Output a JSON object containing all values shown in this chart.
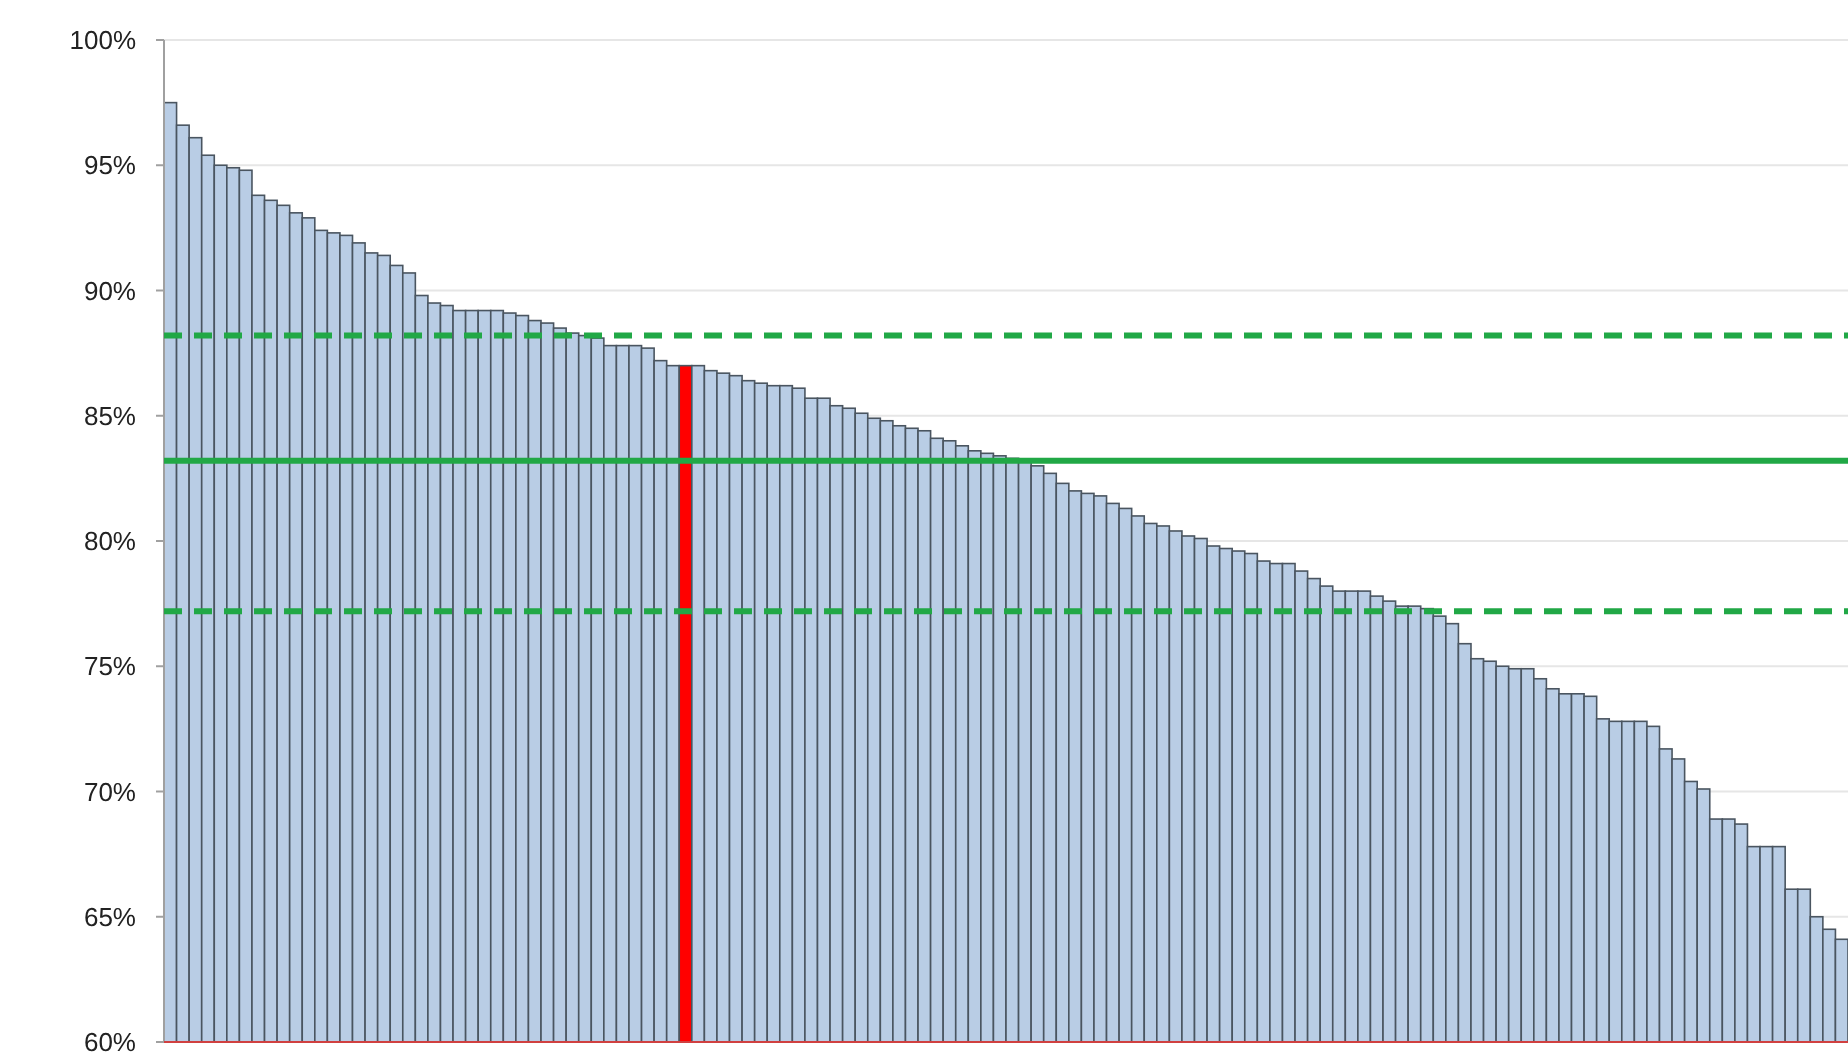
{
  "chart_data": {
    "type": "bar",
    "categories": [
      null,
      null,
      null,
      null,
      null,
      null,
      null,
      null,
      null,
      null,
      null,
      null,
      null,
      null,
      null,
      null,
      null,
      null,
      null,
      null,
      null,
      null,
      null,
      null,
      null,
      null,
      null,
      null,
      null,
      null,
      null,
      null,
      null,
      null,
      null,
      null,
      null,
      null,
      null,
      null,
      null,
      null,
      null,
      null,
      null,
      null,
      null,
      null,
      null,
      null,
      null,
      null,
      null,
      null,
      null,
      null,
      null,
      null,
      null,
      null,
      null,
      null,
      null,
      null,
      null,
      null,
      null,
      null,
      null,
      null,
      null,
      null,
      null,
      null,
      null,
      null,
      null,
      null,
      null,
      null,
      null,
      null,
      null,
      null,
      null,
      null,
      null,
      null,
      null,
      null,
      null,
      null,
      null,
      null,
      null,
      null,
      null,
      null,
      null,
      null,
      null,
      null,
      null,
      null,
      null,
      null,
      null,
      null,
      null,
      null,
      null,
      null,
      null,
      null,
      null,
      null,
      null,
      null,
      null,
      null,
      null,
      null,
      null,
      null,
      null,
      null,
      null,
      null,
      null,
      null,
      null,
      null,
      null,
      null
    ],
    "values": [
      97.5,
      96.6,
      96.1,
      95.4,
      95.0,
      94.9,
      94.8,
      93.8,
      93.6,
      93.4,
      93.1,
      92.9,
      92.4,
      92.3,
      92.2,
      91.9,
      91.5,
      91.4,
      91.0,
      90.7,
      89.8,
      89.5,
      89.4,
      89.2,
      89.2,
      89.2,
      89.2,
      89.1,
      89.0,
      88.8,
      88.7,
      88.5,
      88.3,
      88.2,
      88.1,
      87.8,
      87.8,
      87.8,
      87.7,
      87.2,
      87.0,
      87.0,
      87.0,
      86.8,
      86.7,
      86.6,
      86.4,
      86.3,
      86.2,
      86.2,
      86.1,
      85.7,
      85.7,
      85.4,
      85.3,
      85.1,
      84.9,
      84.8,
      84.6,
      84.5,
      84.4,
      84.1,
      84.0,
      83.8,
      83.6,
      83.5,
      83.4,
      83.3,
      83.2,
      83.0,
      82.7,
      82.3,
      82.0,
      81.9,
      81.8,
      81.5,
      81.3,
      81.0,
      80.7,
      80.6,
      80.4,
      80.2,
      80.1,
      79.8,
      79.7,
      79.6,
      79.5,
      79.2,
      79.1,
      79.1,
      78.8,
      78.5,
      78.2,
      78.0,
      78.0,
      78.0,
      77.8,
      77.6,
      77.4,
      77.4,
      77.3,
      77.0,
      76.7,
      75.9,
      75.3,
      75.2,
      75.0,
      74.9,
      74.9,
      74.5,
      74.1,
      73.9,
      73.9,
      73.8,
      72.9,
      72.8,
      72.8,
      72.8,
      72.6,
      71.7,
      71.3,
      70.4,
      70.1,
      68.9,
      68.9,
      68.7,
      67.8,
      67.8,
      67.8,
      66.1,
      66.1,
      65.0,
      64.5,
      64.1
    ],
    "colors": [
      "#b9cde5",
      "#b9cde5",
      "#b9cde5",
      "#b9cde5",
      "#b9cde5",
      "#b9cde5",
      "#b9cde5",
      "#b9cde5",
      "#b9cde5",
      "#b9cde5",
      "#b9cde5",
      "#b9cde5",
      "#b9cde5",
      "#b9cde5",
      "#b9cde5",
      "#b9cde5",
      "#b9cde5",
      "#b9cde5",
      "#b9cde5",
      "#b9cde5",
      "#b9cde5",
      "#b9cde5",
      "#b9cde5",
      "#b9cde5",
      "#b9cde5",
      "#b9cde5",
      "#b9cde5",
      "#b9cde5",
      "#b9cde5",
      "#b9cde5",
      "#b9cde5",
      "#b9cde5",
      "#b9cde5",
      "#b9cde5",
      "#b9cde5",
      "#b9cde5",
      "#b9cde5",
      "#b9cde5",
      "#b9cde5",
      "#b9cde5",
      "#b9cde5",
      "#ff0000",
      "#b9cde5",
      "#b9cde5",
      "#b9cde5",
      "#b9cde5",
      "#b9cde5",
      "#b9cde5",
      "#b9cde5",
      "#b9cde5",
      "#b9cde5",
      "#b9cde5",
      "#b9cde5",
      "#b9cde5",
      "#b9cde5",
      "#b9cde5",
      "#b9cde5",
      "#b9cde5",
      "#b9cde5",
      "#b9cde5",
      "#b9cde5",
      "#b9cde5",
      "#b9cde5",
      "#b9cde5",
      "#b9cde5",
      "#b9cde5",
      "#b9cde5",
      "#b9cde5",
      "#b9cde5",
      "#b9cde5",
      "#b9cde5",
      "#b9cde5",
      "#b9cde5",
      "#b9cde5",
      "#b9cde5",
      "#b9cde5",
      "#b9cde5",
      "#b9cde5",
      "#b9cde5",
      "#b9cde5",
      "#b9cde5",
      "#b9cde5",
      "#b9cde5",
      "#b9cde5",
      "#b9cde5",
      "#b9cde5",
      "#b9cde5",
      "#b9cde5",
      "#b9cde5",
      "#b9cde5",
      "#b9cde5",
      "#b9cde5",
      "#b9cde5",
      "#b9cde5",
      "#b9cde5",
      "#b9cde5",
      "#b9cde5",
      "#b9cde5",
      "#b9cde5",
      "#b9cde5",
      "#b9cde5",
      "#b9cde5",
      "#b9cde5",
      "#b9cde5",
      "#b9cde5",
      "#b9cde5",
      "#b9cde5",
      "#b9cde5",
      "#b9cde5",
      "#b9cde5",
      "#b9cde5",
      "#b9cde5",
      "#b9cde5",
      "#b9cde5",
      "#b9cde5",
      "#b9cde5",
      "#b9cde5",
      "#b9cde5",
      "#b9cde5",
      "#b9cde5",
      "#b9cde5",
      "#b9cde5",
      "#b9cde5",
      "#b9cde5",
      "#b9cde5",
      "#b9cde5",
      "#b9cde5",
      "#b9cde5",
      "#b9cde5",
      "#b9cde5",
      "#b9cde5",
      "#b9cde5",
      "#b9cde5",
      "#b9cde5"
    ],
    "ylim": [
      60,
      100
    ],
    "yticks": [
      {
        "value": 60,
        "label": "60%"
      },
      {
        "value": 65,
        "label": "65%"
      },
      {
        "value": 70,
        "label": "70%"
      },
      {
        "value": 75,
        "label": "75%"
      },
      {
        "value": 80,
        "label": "80%"
      },
      {
        "value": 85,
        "label": "85%"
      },
      {
        "value": 90,
        "label": "90%"
      },
      {
        "value": 95,
        "label": "95%"
      },
      {
        "value": 100,
        "label": "100%"
      }
    ],
    "grid": "y",
    "ref_lines": [
      {
        "axis": "y",
        "value": 88.2,
        "color": "#21a846",
        "line_style": "dashed"
      },
      {
        "axis": "y",
        "value": 83.2,
        "color": "#21a846",
        "line_style": "solid"
      },
      {
        "axis": "y",
        "value": 77.2,
        "color": "#21a846",
        "line_style": "dashed"
      }
    ]
  }
}
